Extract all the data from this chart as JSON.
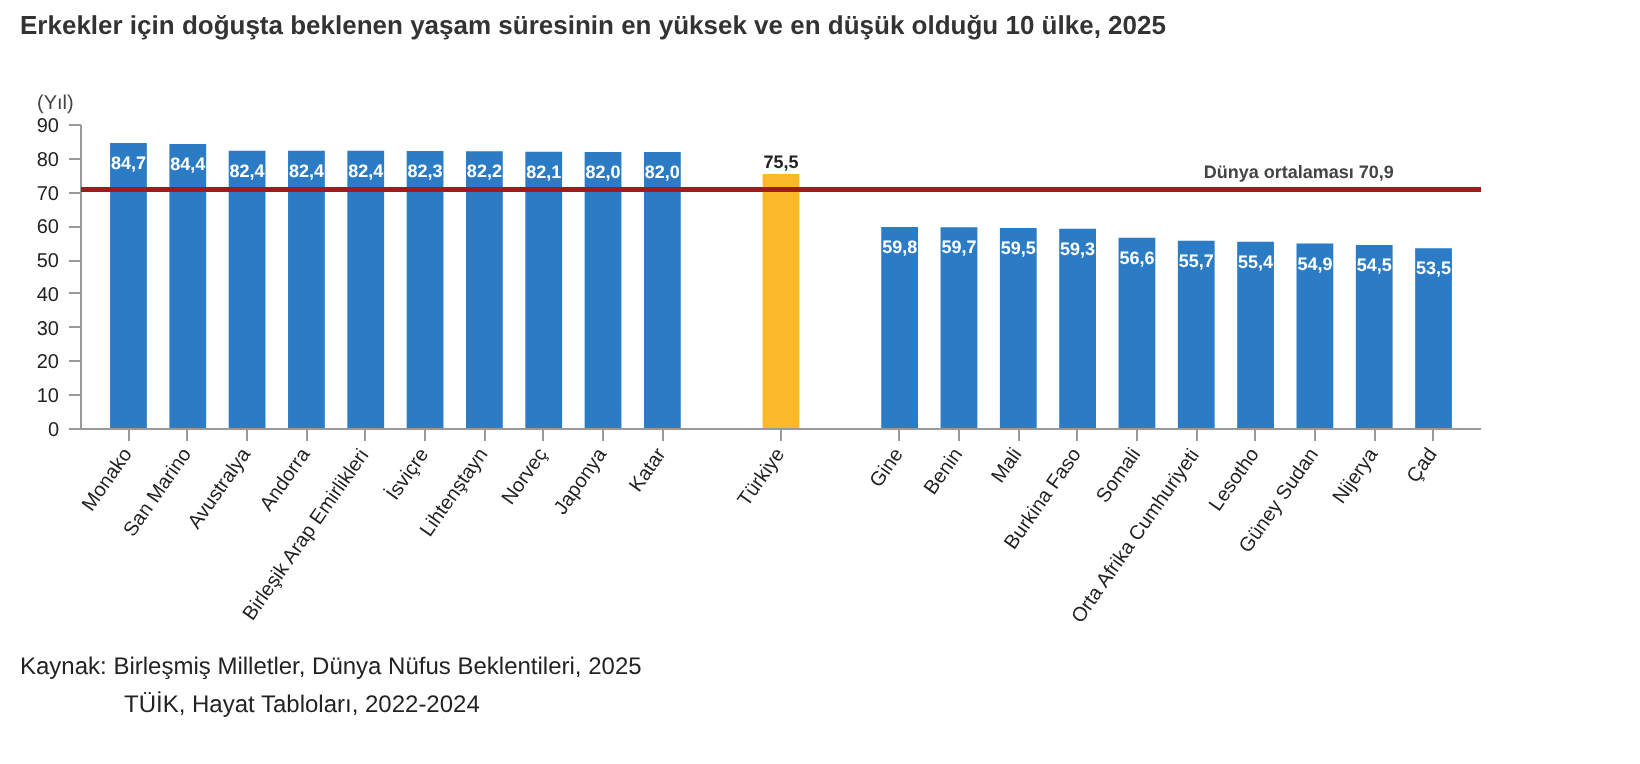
{
  "chart_data": {
    "type": "bar",
    "title": "Erkekler için doğuşta beklenen yaşam süresinin en yüksek ve en düşük olduğu 10 ülke, 2025",
    "ylabel": "(Yıl)",
    "categories": [
      "Monako",
      "San Marino",
      "Avustralya",
      "Andorra",
      "Birleşik Arap Emirlikleri",
      "İsviçre",
      "Lihtenştayn",
      "Norveç",
      "Japonya",
      "Katar",
      null,
      "Türkiye",
      null,
      "Gine",
      "Benin",
      "Mali",
      "Burkina Faso",
      "Somali",
      "Orta Afrika Cumhuriyeti",
      "Lesotho",
      "Güney Sudan",
      "Nijerya",
      "Çad"
    ],
    "values": [
      84.7,
      84.4,
      82.4,
      82.4,
      82.4,
      82.3,
      82.2,
      82.1,
      82.0,
      82.0,
      null,
      75.5,
      null,
      59.8,
      59.7,
      59.5,
      59.3,
      56.6,
      55.7,
      55.4,
      54.9,
      54.5,
      53.5
    ],
    "value_labels": [
      "84,7",
      "84,4",
      "82,4",
      "82,4",
      "82,4",
      "82,3",
      "82,2",
      "82,1",
      "82,0",
      "82,0",
      null,
      "75,5",
      null,
      "59,8",
      "59,7",
      "59,5",
      "59,3",
      "56,6",
      "55,7",
      "55,4",
      "54,9",
      "54,5",
      "53,5"
    ],
    "colors": [
      "#2b7cc4",
      "#2b7cc4",
      "#2b7cc4",
      "#2b7cc4",
      "#2b7cc4",
      "#2b7cc4",
      "#2b7cc4",
      "#2b7cc4",
      "#2b7cc4",
      "#2b7cc4",
      "#2b7cc4",
      "#fbb829",
      "#2b7cc4",
      "#2b7cc4",
      "#2b7cc4",
      "#2b7cc4",
      "#2b7cc4",
      "#2b7cc4",
      "#2b7cc4",
      "#2b7cc4",
      "#2b7cc4",
      "#2b7cc4",
      "#2b7cc4"
    ],
    "ylim": [
      0,
      90
    ],
    "yticks": [
      0,
      10,
      20,
      30,
      40,
      50,
      60,
      70,
      80,
      90
    ],
    "grid": false,
    "ref_lines": [
      {
        "axis": "y",
        "value": 70.9,
        "label": "Dünya ortalaması   70,9",
        "color": "#a01c1c"
      }
    ],
    "annotations": [
      "Kaynak: Birleşmiş Milletler, Dünya Nüfus Beklentileri, 2025",
      "TÜİK, Hayat Tabloları, 2022-2024"
    ]
  }
}
